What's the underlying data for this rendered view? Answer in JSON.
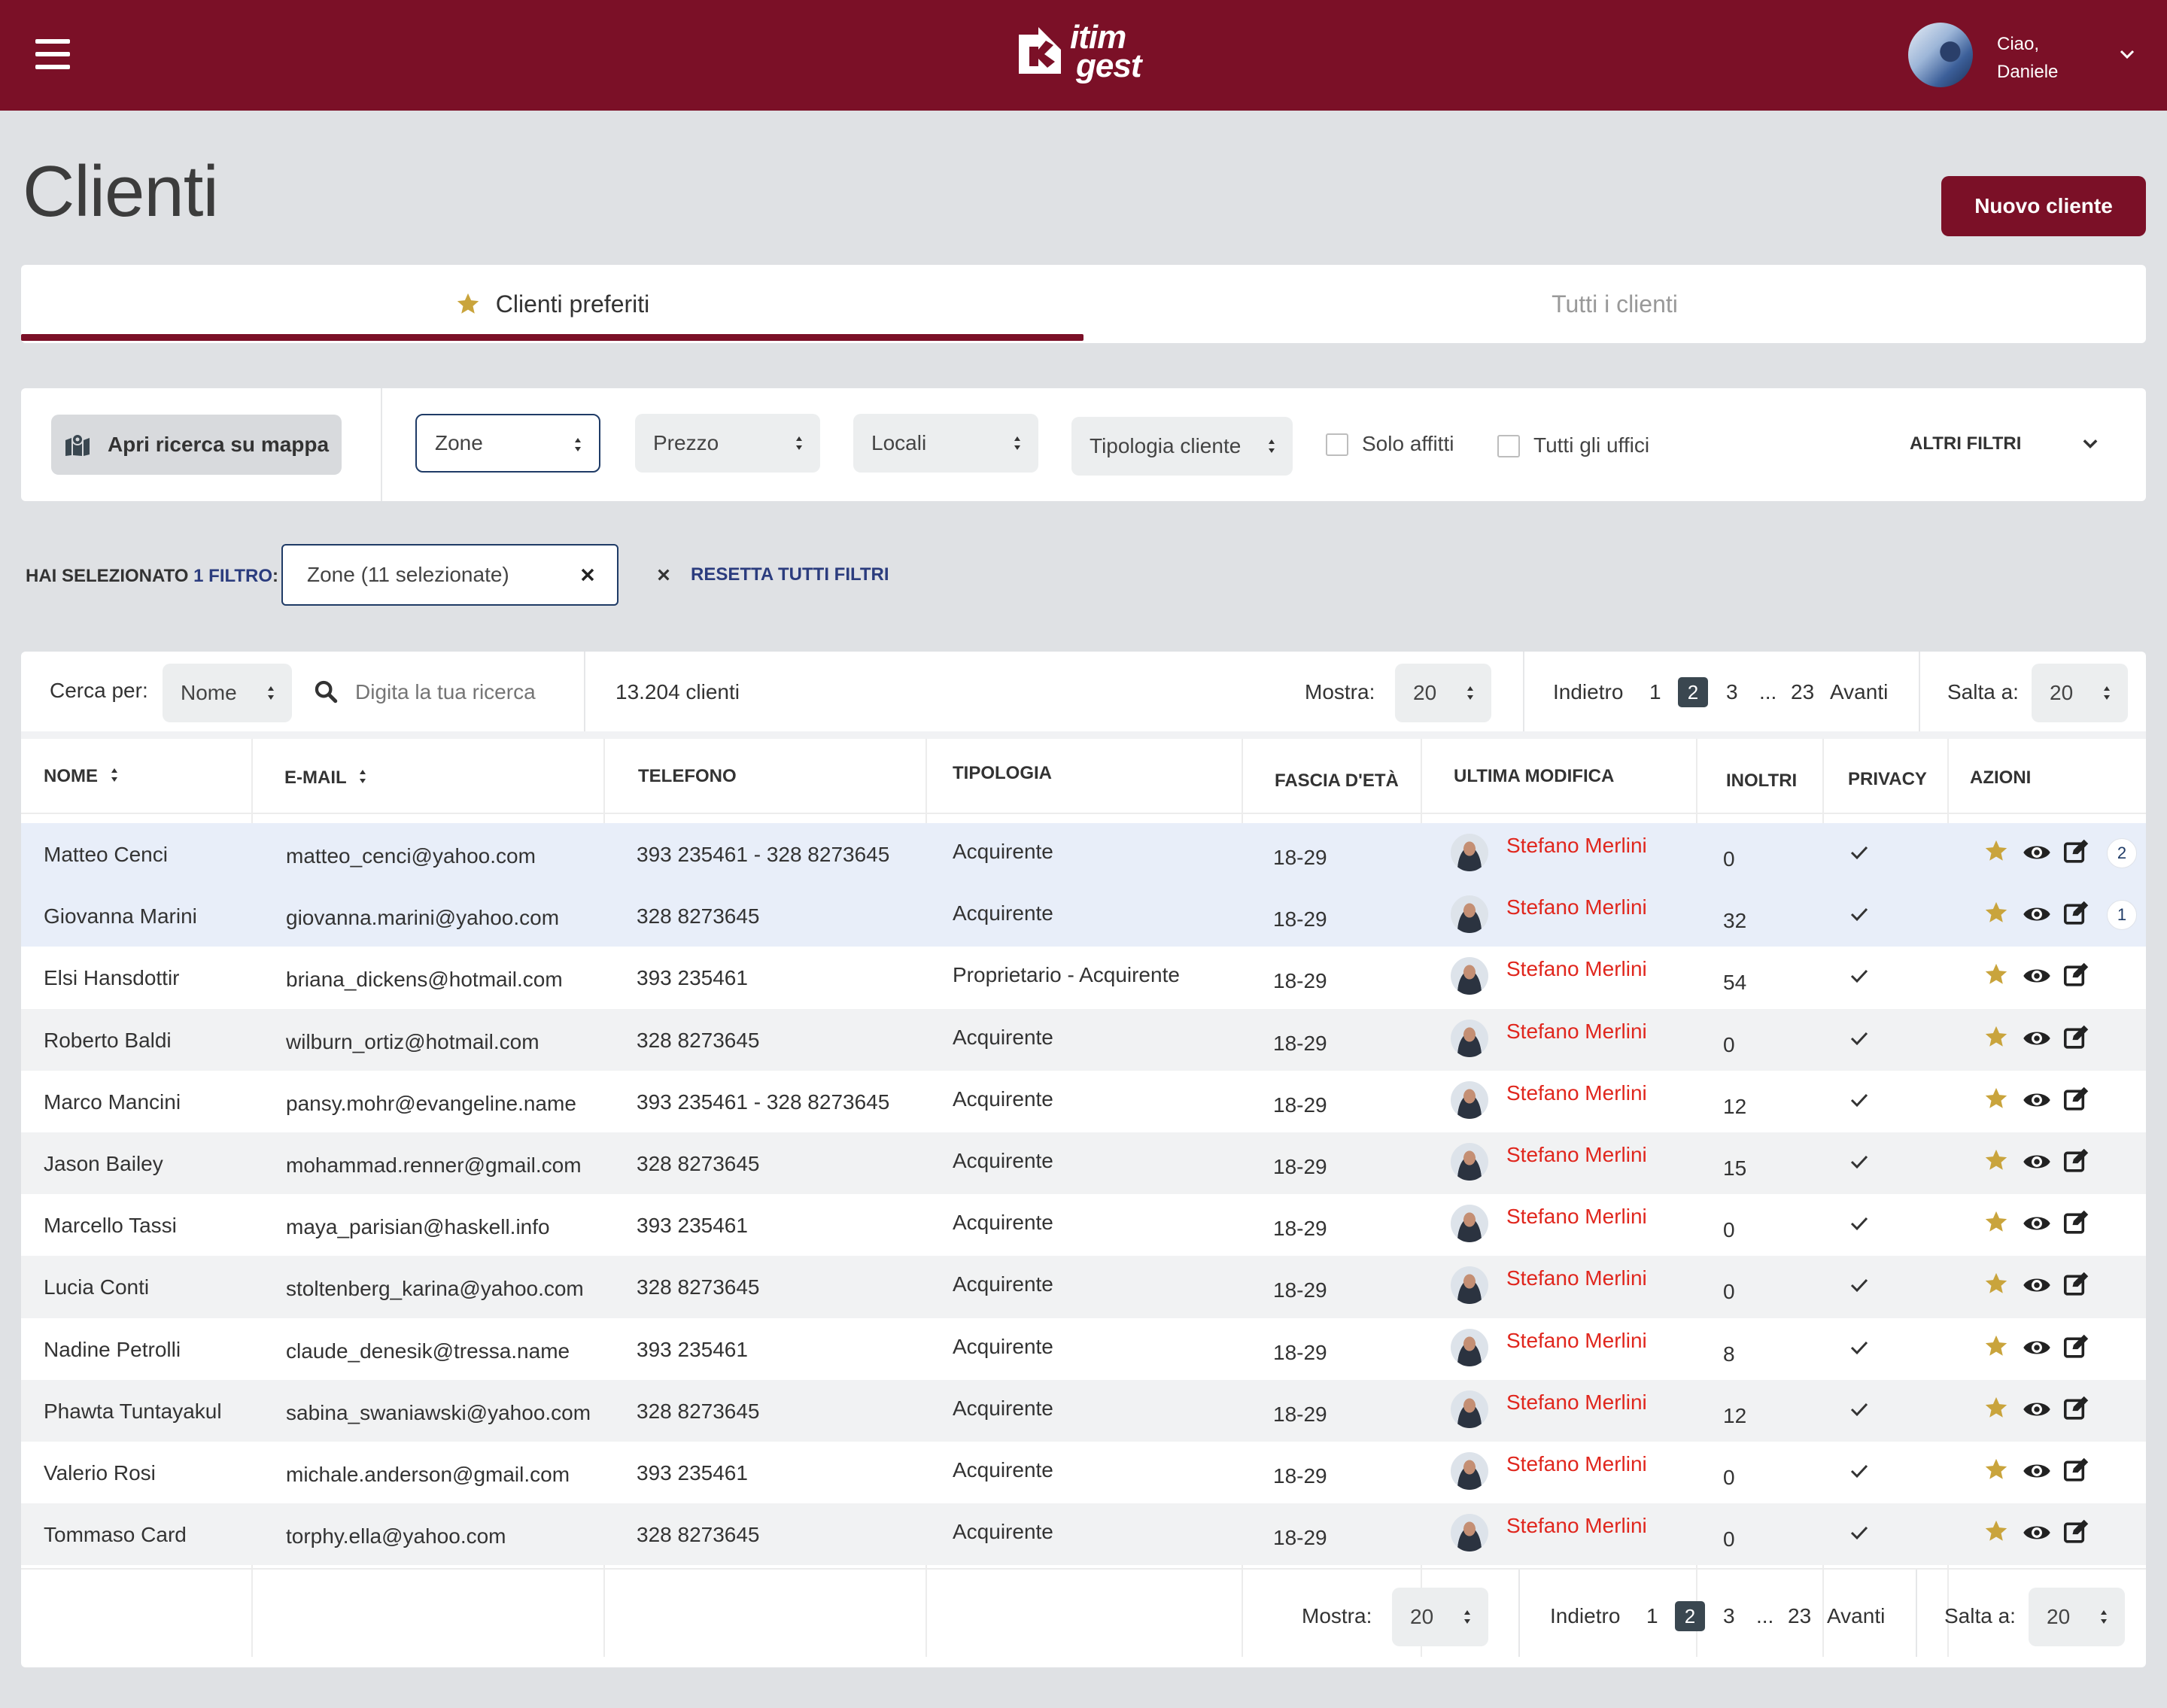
{
  "header": {
    "logo_line1": "itim",
    "logo_line2": "gest",
    "greeting_line1": "Ciao,",
    "greeting_line2": "Daniele",
    "brand_color": "#7b1027"
  },
  "page": {
    "title": "Clienti",
    "new_button": "Nuovo cliente"
  },
  "tabs": [
    {
      "label": "Clienti preferiti",
      "icon": "star-icon",
      "active": true
    },
    {
      "label": "Tutti i clienti",
      "active": false
    }
  ],
  "filters": {
    "map_button": "Apri ricerca su mappa",
    "zone": "Zone",
    "prezzo": "Prezzo",
    "locali": "Locali",
    "tipologia": "Tipologia cliente",
    "solo_affitti": "Solo affitti",
    "tutti_uffici": "Tutti gli uffici",
    "altri_filtri": "ALTRI FILTRI"
  },
  "selected": {
    "prefix": "HAI SELEZIONATO",
    "count": "1 FILTRO",
    "suffix": ":",
    "chip": "Zone (11 selezionate)",
    "reset": "RESETTA TUTTI FILTRI"
  },
  "toolbar": {
    "search_by_label": "Cerca per:",
    "search_by_value": "Nome",
    "search_placeholder": "Digita la tua ricerca",
    "count": "13.204 clienti",
    "show_label": "Mostra:",
    "show_value": "20",
    "prev": "Indietro",
    "pages": [
      "1",
      "2",
      "3"
    ],
    "current_page": "2",
    "ellipsis": "...",
    "last_page": "23",
    "next": "Avanti",
    "jump_label": "Salta a:",
    "jump_value": "20"
  },
  "table": {
    "columns": [
      "NOME",
      "E-MAIL",
      "TELEFONO",
      "TIPOLOGIA",
      "FASCIA D'ETÀ",
      "ULTIMA MODIFICA",
      "INOLTRI",
      "PRIVACY",
      "AZIONI"
    ],
    "rows": [
      {
        "name": "Matteo Cenci",
        "email": "matteo_cenci@yahoo.com",
        "phone": "393 235461  -  328 8273645",
        "type": "Acquirente",
        "age": "18-29",
        "modified_by": "Stefano Merlini",
        "inoltri": "0",
        "badge": "2"
      },
      {
        "name": "Giovanna Marini",
        "email": "giovanna.marini@yahoo.com",
        "phone": "328 8273645",
        "type": "Acquirente",
        "age": "18-29",
        "modified_by": "Stefano Merlini",
        "inoltri": "32",
        "badge": "1"
      },
      {
        "name": "Elsi Hansdottir",
        "email": "briana_dickens@hotmail.com",
        "phone": "393 235461",
        "type": "Proprietario - Acquirente",
        "age": "18-29",
        "modified_by": "Stefano Merlini",
        "inoltri": "54",
        "badge": ""
      },
      {
        "name": "Roberto Baldi",
        "email": "wilburn_ortiz@hotmail.com",
        "phone": "328 8273645",
        "type": "Acquirente",
        "age": "18-29",
        "modified_by": "Stefano Merlini",
        "inoltri": "0",
        "badge": ""
      },
      {
        "name": "Marco Mancini",
        "email": "pansy.mohr@evangeline.name",
        "phone": "393 235461 - 328 8273645",
        "type": "Acquirente",
        "age": "18-29",
        "modified_by": "Stefano Merlini",
        "inoltri": "12",
        "badge": ""
      },
      {
        "name": "Jason Bailey",
        "email": "mohammad.renner@gmail.com",
        "phone": "328 8273645",
        "type": "Acquirente",
        "age": "18-29",
        "modified_by": "Stefano Merlini",
        "inoltri": "15",
        "badge": ""
      },
      {
        "name": "Marcello Tassi",
        "email": "maya_parisian@haskell.info",
        "phone": "393 235461",
        "type": "Acquirente",
        "age": "18-29",
        "modified_by": "Stefano Merlini",
        "inoltri": "0",
        "badge": ""
      },
      {
        "name": "Lucia Conti",
        "email": "stoltenberg_karina@yahoo.com",
        "phone": "328 8273645",
        "type": "Acquirente",
        "age": "18-29",
        "modified_by": "Stefano Merlini",
        "inoltri": "0",
        "badge": ""
      },
      {
        "name": "Nadine Petrolli",
        "email": "claude_denesik@tressa.name",
        "phone": "393 235461",
        "type": "Acquirente",
        "age": "18-29",
        "modified_by": "Stefano Merlini",
        "inoltri": "8",
        "badge": ""
      },
      {
        "name": "Phawta Tuntayakul",
        "email": "sabina_swaniawski@yahoo.com",
        "phone": "328 8273645",
        "type": "Acquirente",
        "age": "18-29",
        "modified_by": "Stefano Merlini",
        "inoltri": "12",
        "badge": ""
      },
      {
        "name": "Valerio Rosi",
        "email": "michale.anderson@gmail.com",
        "phone": "393 235461",
        "type": "Acquirente",
        "age": "18-29",
        "modified_by": "Stefano Merlini",
        "inoltri": "0",
        "badge": ""
      },
      {
        "name": "Tommaso Card",
        "email": "torphy.ella@yahoo.com",
        "phone": "328 8273645",
        "type": "Acquirente",
        "age": "18-29",
        "modified_by": "Stefano Merlini",
        "inoltri": "0",
        "badge": ""
      }
    ]
  }
}
